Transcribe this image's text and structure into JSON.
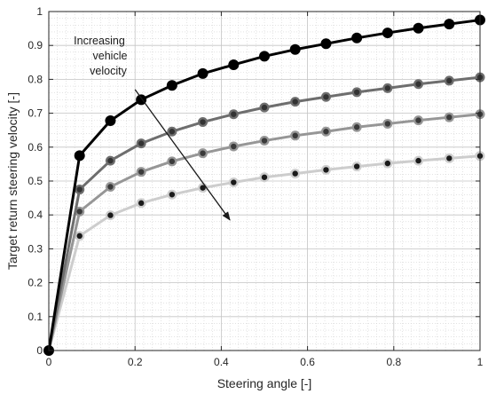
{
  "chart_data": {
    "type": "line",
    "title": "",
    "xlabel": "Steering angle [-]",
    "ylabel": "Target return steering velocity [-]",
    "xlim": [
      0,
      1
    ],
    "ylim": [
      0,
      1
    ],
    "grid": "major and minor",
    "legend": "none",
    "x_ticks": [
      0,
      0.2,
      0.4,
      0.6,
      0.8,
      1
    ],
    "x_tick_labels": [
      "0",
      "0.2",
      "0.4",
      "0.6",
      "0.8",
      "1"
    ],
    "y_ticks": [
      0,
      0.1,
      0.2,
      0.3,
      0.4,
      0.5,
      0.6,
      0.7,
      0.8,
      0.9,
      1
    ],
    "y_tick_labels": [
      "0",
      "0.1",
      "0.2",
      "0.3",
      "0.4",
      "0.5",
      "0.6",
      "0.7",
      "0.8",
      "0.9",
      "1"
    ],
    "x": [
      0,
      0.0714,
      0.1429,
      0.2143,
      0.2857,
      0.3571,
      0.4286,
      0.5,
      0.5714,
      0.6429,
      0.7143,
      0.7857,
      0.8571,
      0.9286,
      1.0
    ],
    "series": [
      {
        "color": "#000000",
        "marker_fill": "#000000",
        "values": [
          0,
          0.575,
          0.678,
          0.74,
          0.782,
          0.817,
          0.843,
          0.868,
          0.888,
          0.905,
          0.922,
          0.937,
          0.951,
          0.963,
          0.975
        ]
      },
      {
        "color": "#6e6e6e",
        "marker_fill": "#333333",
        "values": [
          0,
          0.475,
          0.56,
          0.611,
          0.646,
          0.674,
          0.697,
          0.717,
          0.734,
          0.748,
          0.762,
          0.774,
          0.786,
          0.796,
          0.806
        ]
      },
      {
        "color": "#969696",
        "marker_fill": "#3a3a3a",
        "values": [
          0,
          0.41,
          0.483,
          0.527,
          0.558,
          0.582,
          0.602,
          0.619,
          0.634,
          0.646,
          0.659,
          0.669,
          0.679,
          0.688,
          0.697
        ]
      },
      {
        "color": "#cdcdcd",
        "marker_fill": "#1a1a1a",
        "values": [
          0,
          0.338,
          0.399,
          0.435,
          0.46,
          0.48,
          0.496,
          0.511,
          0.522,
          0.533,
          0.543,
          0.552,
          0.56,
          0.567,
          0.574
        ]
      }
    ],
    "annotation": {
      "lines": [
        "Increasing",
        "vehicle",
        "velocity"
      ],
      "arrow_from": [
        0.2,
        0.77
      ],
      "arrow_to": [
        0.42,
        0.385
      ]
    }
  }
}
